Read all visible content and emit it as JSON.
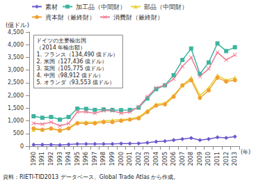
{
  "chart_data": {
    "type": "line",
    "y_label": "(億ドル)",
    "x_label": "(年)",
    "source": "資料：RIETI-TID2013 データベース、Global Trade Atlas から作成。",
    "annotations": [
      "ドイツの主要輸出国",
      "（2014 年輸出額）",
      "1. フランス（134,490 億ドル）",
      "2. 米国（127,436 億ドル）",
      "3. 英国（105,775 億ドル）",
      "4. 中国（98,912 億ドル）",
      "5. オランダ（93,553 億ドル）"
    ],
    "categories": [
      "1990",
      "1991",
      "1992",
      "1993",
      "1994",
      "1995",
      "1996",
      "1997",
      "1998",
      "1999",
      "2000",
      "2001",
      "2002",
      "2003",
      "2004",
      "2005",
      "2006",
      "2007",
      "2008",
      "2009",
      "2010",
      "2011",
      "2012",
      "2013"
    ],
    "series": [
      {
        "name": "素材",
        "color": "#6a5acd",
        "marker": "diamond",
        "values": [
          60,
          60,
          60,
          50,
          70,
          90,
          90,
          90,
          90,
          90,
          100,
          100,
          110,
          140,
          180,
          200,
          240,
          280,
          320,
          240,
          280,
          350,
          330,
          380
        ]
      },
      {
        "name": "加工品（中間財）",
        "color": "#3cb4a0",
        "marker": "square",
        "values": [
          1180,
          1120,
          1150,
          1050,
          1150,
          1480,
          1470,
          1430,
          1450,
          1430,
          1420,
          1430,
          1520,
          1880,
          2250,
          2400,
          2800,
          3400,
          3850,
          2850,
          3300,
          4050,
          3750,
          3900
        ]
      },
      {
        "name": "部品（中間財）",
        "color": "#e8d23c",
        "marker": "triangle",
        "values": [
          650,
          650,
          700,
          620,
          720,
          950,
          950,
          950,
          1000,
          1020,
          1050,
          1080,
          1150,
          1400,
          1650,
          1700,
          2000,
          2400,
          2700,
          2000,
          2300,
          2800,
          2600,
          2700
        ]
      },
      {
        "name": "資本財（最終財）",
        "color": "#f0a030",
        "marker": "circle",
        "values": [
          700,
          650,
          700,
          620,
          700,
          900,
          900,
          900,
          950,
          950,
          1000,
          1050,
          1100,
          1350,
          1600,
          1650,
          1950,
          2400,
          2600,
          1900,
          2200,
          2700,
          2550,
          2600
        ]
      },
      {
        "name": "消費財（最終財）",
        "color": "#f07890",
        "marker": "x",
        "values": [
          900,
          870,
          950,
          800,
          900,
          1350,
          1350,
          1300,
          1400,
          1400,
          1300,
          1350,
          1550,
          1950,
          2300,
          2400,
          2650,
          3150,
          3500,
          2750,
          3050,
          3700,
          3400,
          3600
        ]
      }
    ],
    "ylim": [
      0,
      4500
    ],
    "yticks": [
      0,
      500,
      {
        "value": 1000,
        "label": "1,000"
      },
      {
        "value": 1500,
        "label": "1,500"
      },
      {
        "value": 2000,
        "label": "2,000"
      },
      {
        "value": 2500,
        "label": "2,500"
      },
      {
        "value": 3000,
        "label": "3,000"
      },
      {
        "value": 3500,
        "label": "3,500"
      },
      {
        "value": 4000,
        "label": "4,000"
      },
      {
        "value": 4500,
        "label": "4,500"
      }
    ],
    "grid": false,
    "legend": "top"
  }
}
